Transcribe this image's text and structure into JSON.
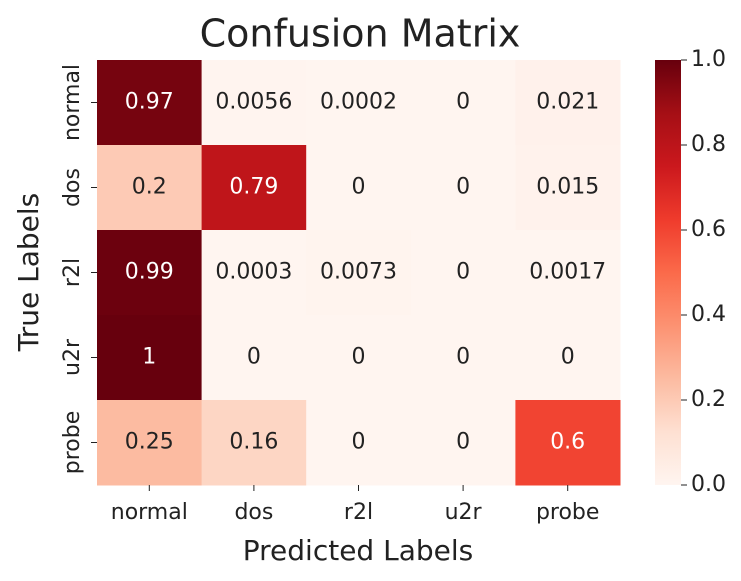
{
  "chart_data": {
    "type": "heatmap",
    "title": "Confusion Matrix",
    "x_label": "Predicted Labels",
    "y_label": "True Labels",
    "x_categories": [
      "normal",
      "dos",
      "r2l",
      "u2r",
      "probe"
    ],
    "y_categories": [
      "normal",
      "dos",
      "r2l",
      "u2r",
      "probe"
    ],
    "values": [
      [
        0.97,
        0.0056,
        0.0002,
        0,
        0.021
      ],
      [
        0.2,
        0.79,
        0,
        0,
        0.015
      ],
      [
        0.99,
        0.0003,
        0.0073,
        0,
        0.0017
      ],
      [
        1,
        0,
        0,
        0,
        0
      ],
      [
        0.25,
        0.16,
        0,
        0,
        0.6
      ]
    ],
    "colormap": [
      "#fff5f0",
      "#fee0d2",
      "#fcbba1",
      "#fc9272",
      "#fb6a4a",
      "#ef3b2c",
      "#cb181d",
      "#a50f15",
      "#67000d"
    ],
    "clim": [
      0,
      1
    ],
    "cticks": [
      {
        "value": 0,
        "label": "0.0"
      },
      0.2,
      0.4,
      0.6,
      0.8,
      {
        "value": 1,
        "label": "1.0"
      }
    ]
  }
}
